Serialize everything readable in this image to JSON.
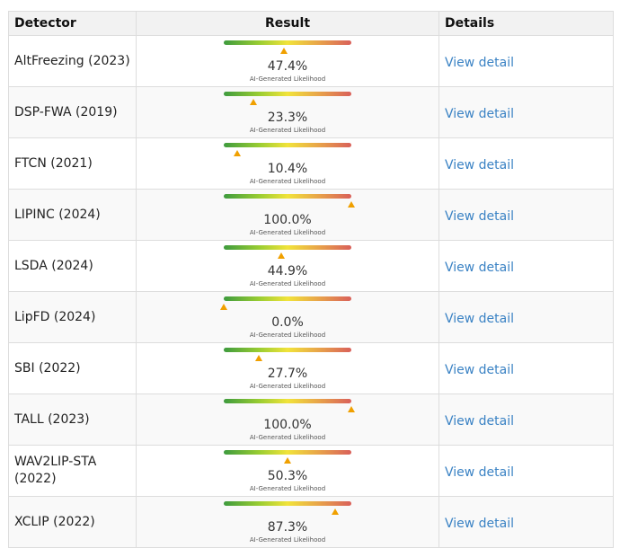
{
  "table": {
    "headers": {
      "detector": "Detector",
      "result": "Result",
      "details": "Details"
    },
    "caption": "AI-Generated Likelihood",
    "link_label": "View detail",
    "rows": [
      {
        "detector": "AltFreezing (2023)",
        "percent_text": "47.4%",
        "percent": 47.4
      },
      {
        "detector": "DSP-FWA (2019)",
        "percent_text": "23.3%",
        "percent": 23.3
      },
      {
        "detector": "FTCN (2021)",
        "percent_text": "10.4%",
        "percent": 10.4
      },
      {
        "detector": "LIPINC (2024)",
        "percent_text": "100.0%",
        "percent": 100.0
      },
      {
        "detector": "LSDA (2024)",
        "percent_text": "44.9%",
        "percent": 44.9
      },
      {
        "detector": "LipFD (2024)",
        "percent_text": "0.0%",
        "percent": 0.0
      },
      {
        "detector": "SBI (2022)",
        "percent_text": "27.7%",
        "percent": 27.7
      },
      {
        "detector": "TALL (2023)",
        "percent_text": "100.0%",
        "percent": 100.0
      },
      {
        "detector": "WAV2LIP-STA (2022)",
        "percent_text": "50.3%",
        "percent": 50.3
      },
      {
        "detector": "XCLIP (2022)",
        "percent_text": "87.3%",
        "percent": 87.3
      }
    ]
  },
  "colors": {
    "link": "#3a82c4",
    "marker": "#f0a000",
    "gradient_start": "#3e9b3e",
    "gradient_mid": "#f1e33a",
    "gradient_end": "#d9605a"
  }
}
